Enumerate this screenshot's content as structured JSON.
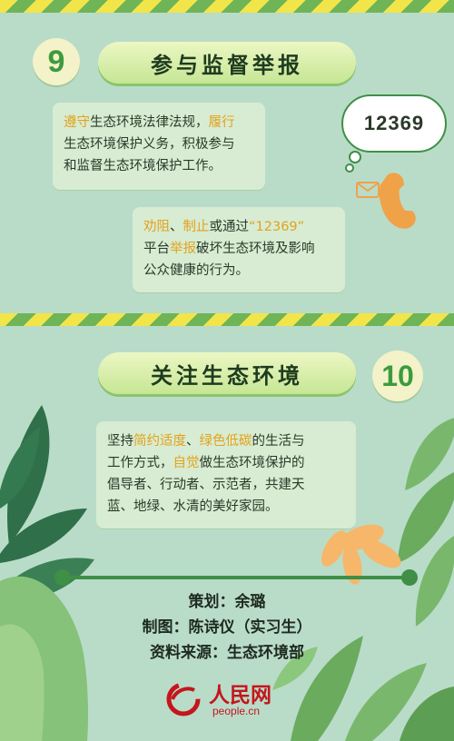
{
  "section9": {
    "number": "9",
    "title": "参与监督举报",
    "panel1": {
      "lines": [
        [
          {
            "t": "遵守",
            "hl": true
          },
          {
            "t": "生态环境法律法规，",
            "hl": false
          },
          {
            "t": "履行",
            "hl": true
          }
        ],
        [
          {
            "t": "生态环境保护义务，积极参与",
            "hl": false
          }
        ],
        [
          {
            "t": "和监督生态环境保护工作。",
            "hl": false
          }
        ]
      ]
    },
    "panel2": {
      "lines": [
        [
          {
            "t": "劝阻",
            "hl": true
          },
          {
            "t": "、",
            "hl": false
          },
          {
            "t": "制止",
            "hl": true
          },
          {
            "t": "或通过",
            "hl": false
          },
          {
            "t": "“12369”",
            "hl": true
          }
        ],
        [
          {
            "t": "平台",
            "hl": false
          },
          {
            "t": "举报",
            "hl": true
          },
          {
            "t": "破坏生态环境及影响",
            "hl": false
          }
        ],
        [
          {
            "t": "公众健康的行为。",
            "hl": false
          }
        ]
      ]
    },
    "hotline": "12369"
  },
  "section10": {
    "number": "10",
    "title": "关注生态环境",
    "panel": {
      "lines": [
        [
          {
            "t": "坚持",
            "hl": false
          },
          {
            "t": "简约适度",
            "hl": true
          },
          {
            "t": "、",
            "hl": false
          },
          {
            "t": "绿色低碳",
            "hl": true
          },
          {
            "t": "的生活与",
            "hl": false
          }
        ],
        [
          {
            "t": "工作方式，",
            "hl": false
          },
          {
            "t": "自觉",
            "hl": true
          },
          {
            "t": "做生态环境保护的",
            "hl": false
          }
        ],
        [
          {
            "t": "倡导者、行动者、示范者，共建天",
            "hl": false
          }
        ],
        [
          {
            "t": "蓝、地绿、水清的美好家园。",
            "hl": false
          }
        ]
      ]
    }
  },
  "credits": {
    "planner": "策划：余璐",
    "designer": "制图：陈诗仪（实习生）",
    "source": "资料来源：生态环境部"
  },
  "logo": {
    "name": "人民网",
    "url": "people.cn"
  },
  "colors": {
    "background": "#b9dcc9",
    "highlight": "#e4a21c",
    "dark_green": "#3f8f46",
    "logo_red": "#c4161c"
  },
  "icons": [
    "phone-icon",
    "envelope-icon",
    "speech-bubble-icon",
    "people-logo-icon",
    "leaf-decoration"
  ]
}
